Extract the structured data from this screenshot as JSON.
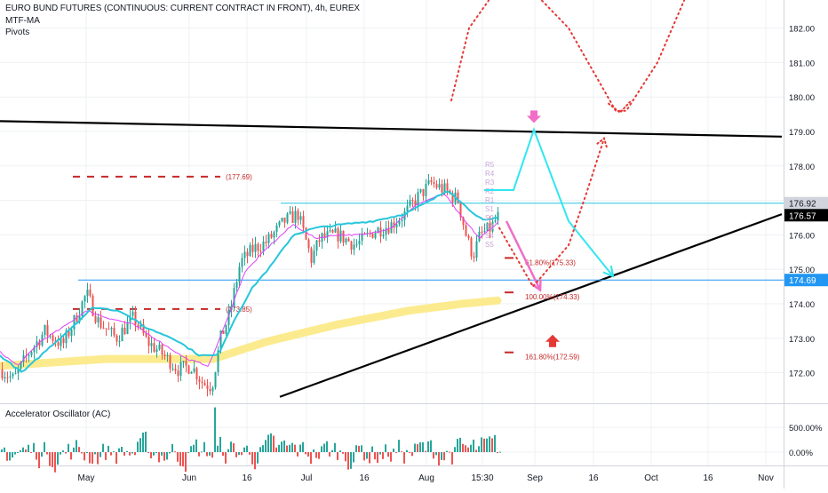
{
  "header": {
    "title": "EURO BUND FUTURES (CONTINUOUS: CURRENT CONTRACT IN FRONT), 4h, EUREX",
    "indicators": [
      "MTF-MA",
      "Pivots"
    ],
    "oscillator_title": "Accelerator Oscillator (AC)"
  },
  "colors": {
    "background": "#ffffff",
    "grid": "#eef0f3",
    "up": "#26a69a",
    "down": "#ef5350",
    "pink_ma": "#e040fb",
    "cyan_ma": "#26c6da",
    "yellow_ma": "#fbe77a",
    "trendline": "#000000",
    "level_line": "#2196f3",
    "cyan_path": "#31e6f0",
    "red_dotted": "#e53935",
    "projection_pink": "#f06ec8",
    "fib_dash": "#c62828",
    "fib_text": "#c62828",
    "price_tag_gray": "#d1d4dc",
    "price_tag_black": "#000000",
    "price_tag_blue": "#2196f3"
  },
  "chart_data": [
    {
      "type": "candlestick",
      "title": "EURO BUND FUTURES (CONTINUOUS: CURRENT CONTRACT IN FRONT), 4h, EUREX",
      "x_tick_labels": [
        "May",
        "Jun",
        "16",
        "Jul",
        "16",
        "Aug",
        "15:30",
        "Sep",
        "16",
        "Oct",
        "16",
        "Nov"
      ],
      "y_tick_labels": [
        "182.00",
        "181.00",
        "180.00",
        "179.00",
        "178.00",
        "177.00",
        "176.00",
        "175.00",
        "174.00",
        "173.00",
        "172.00"
      ],
      "ylim": [
        171.3,
        182.6
      ],
      "grid": true,
      "price_close_anchors": [
        [
          0,
          172.1
        ],
        [
          15,
          171.8
        ],
        [
          30,
          172.5
        ],
        [
          50,
          173.2
        ],
        [
          70,
          172.8
        ],
        [
          85,
          173.6
        ],
        [
          97,
          174.3
        ],
        [
          110,
          173.5
        ],
        [
          130,
          173.0
        ],
        [
          150,
          173.6
        ],
        [
          165,
          172.9
        ],
        [
          180,
          172.6
        ],
        [
          200,
          172.1
        ],
        [
          215,
          172.2
        ],
        [
          228,
          171.7
        ],
        [
          238,
          171.6
        ],
        [
          248,
          173.0
        ],
        [
          258,
          173.7
        ],
        [
          270,
          175.2
        ],
        [
          285,
          175.6
        ],
        [
          300,
          175.8
        ],
        [
          320,
          176.4
        ],
        [
          335,
          176.6
        ],
        [
          350,
          175.3
        ],
        [
          360,
          175.9
        ],
        [
          380,
          176.0
        ],
        [
          400,
          175.7
        ],
        [
          420,
          176.1
        ],
        [
          440,
          176.3
        ],
        [
          455,
          176.6
        ],
        [
          470,
          177.1
        ],
        [
          485,
          177.5
        ],
        [
          500,
          177.3
        ],
        [
          515,
          177.0
        ],
        [
          525,
          175.9
        ],
        [
          532,
          175.4
        ],
        [
          540,
          176.0
        ],
        [
          552,
          176.2
        ],
        [
          562,
          176.6
        ]
      ],
      "pink_ma_anchors": [
        [
          0,
          172.6
        ],
        [
          20,
          172.2
        ],
        [
          45,
          172.9
        ],
        [
          70,
          173.3
        ],
        [
          97,
          173.8
        ],
        [
          120,
          173.6
        ],
        [
          150,
          173.4
        ],
        [
          180,
          172.9
        ],
        [
          210,
          172.4
        ],
        [
          235,
          172.2
        ],
        [
          255,
          173.5
        ],
        [
          275,
          174.9
        ],
        [
          300,
          175.6
        ],
        [
          330,
          176.3
        ],
        [
          355,
          175.9
        ],
        [
          380,
          176.0
        ],
        [
          410,
          176.0
        ],
        [
          440,
          176.2
        ],
        [
          470,
          176.9
        ],
        [
          500,
          177.2
        ],
        [
          520,
          176.5
        ],
        [
          540,
          175.9
        ],
        [
          562,
          176.4
        ]
      ],
      "cyan_ma_anchors": [
        [
          0,
          172.5
        ],
        [
          25,
          172.0
        ],
        [
          50,
          172.6
        ],
        [
          80,
          173.3
        ],
        [
          105,
          173.9
        ],
        [
          135,
          173.8
        ],
        [
          165,
          173.3
        ],
        [
          195,
          173.0
        ],
        [
          225,
          172.5
        ],
        [
          245,
          172.5
        ],
        [
          265,
          173.6
        ],
        [
          285,
          174.5
        ],
        [
          305,
          175.1
        ],
        [
          330,
          176.0
        ],
        [
          355,
          176.2
        ],
        [
          385,
          176.3
        ],
        [
          420,
          176.4
        ],
        [
          455,
          176.6
        ],
        [
          485,
          177.0
        ],
        [
          505,
          177.3
        ],
        [
          525,
          176.8
        ],
        [
          545,
          176.4
        ],
        [
          562,
          176.5
        ]
      ],
      "yellow_ma_anchors": [
        [
          0,
          172.2
        ],
        [
          60,
          172.3
        ],
        [
          120,
          172.4
        ],
        [
          190,
          172.4
        ],
        [
          240,
          172.4
        ],
        [
          300,
          172.9
        ],
        [
          380,
          173.4
        ],
        [
          460,
          173.8
        ],
        [
          520,
          174.0
        ],
        [
          562,
          174.1
        ]
      ],
      "horizontal_levels": [
        {
          "from_x": 316,
          "value": 176.92
        },
        {
          "from_x": 88,
          "value": 174.69
        }
      ],
      "price_tags": [
        {
          "value": 176.92,
          "label": "176.92",
          "style": "gray"
        },
        {
          "value": 176.57,
          "label": "176.57",
          "style": "black"
        },
        {
          "value": 174.69,
          "label": "174.69",
          "style": "blue"
        }
      ],
      "trendlines": [
        {
          "x1": 0,
          "y1": 179.3,
          "x2": 880,
          "y2": 178.85
        },
        {
          "x1": 315,
          "y1": 171.3,
          "x2": 880,
          "y2": 176.6
        }
      ],
      "pivot_levels": [
        {
          "x1": 82,
          "x2": 248,
          "value": 177.69,
          "label": "(177.69)"
        },
        {
          "x1": 82,
          "x2": 248,
          "value": 173.85,
          "label": "(173.85)"
        }
      ],
      "fib_levels": [
        {
          "value": 175.33,
          "label": "61.80%(175.33)"
        },
        {
          "value": 174.33,
          "label": "100.00%(174.33)"
        },
        {
          "value": 172.59,
          "label": "161.80%(172.59)"
        }
      ],
      "pivot_stack_labels": [
        "R5",
        "R4",
        "R3",
        "R2",
        "R1",
        "S1",
        "S2",
        "S3",
        "S4",
        "S5"
      ],
      "cyan_path": [
        [
          545,
          177.3
        ],
        [
          578,
          177.3
        ],
        [
          601,
          179.05
        ],
        [
          640,
          176.4
        ],
        [
          690,
          174.8
        ]
      ],
      "red_dotted_path": [
        [
          562,
          176.2
        ],
        [
          600,
          174.5
        ],
        [
          640,
          175.7
        ],
        [
          660,
          177.2
        ],
        [
          680,
          178.8
        ]
      ],
      "red_dotted_upper": [
        [
          508,
          179.9
        ],
        [
          528,
          182.0
        ],
        [
          550,
          182.8
        ]
      ],
      "red_dotted_upper_right": [
        [
          610,
          182.8
        ],
        [
          640,
          182.0
        ],
        [
          693,
          179.6
        ],
        [
          705,
          179.6
        ],
        [
          740,
          181.0
        ],
        [
          770,
          182.8
        ]
      ],
      "pink_arrow": {
        "from": [
          570,
          176.4
        ],
        "to": [
          608,
          174.4
        ]
      },
      "markers": [
        {
          "type": "arrow-down",
          "x": 601,
          "value": 179.35,
          "color": "#f06ec8"
        },
        {
          "type": "arrow-up",
          "x": 622,
          "value": 173.0,
          "color": "#e53935"
        }
      ]
    },
    {
      "type": "bar",
      "title": "Accelerator Oscillator (AC)",
      "y_tick_labels": [
        "500.00%",
        "0.00%"
      ],
      "ylim": [
        -300,
        1000
      ],
      "grid": true,
      "note_spike_at_x": 240
    }
  ]
}
